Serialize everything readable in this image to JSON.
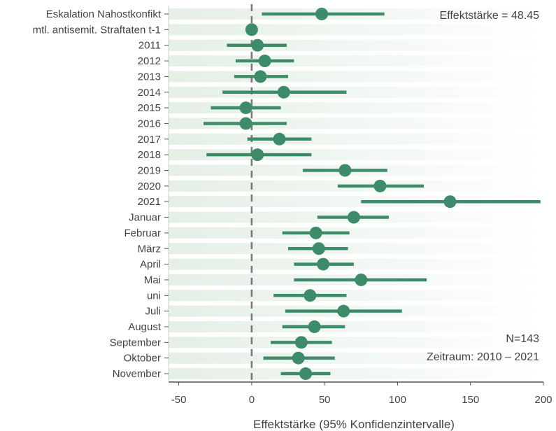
{
  "chart_data": {
    "type": "scatter",
    "subtype": "forest-plot",
    "xlabel": "Effektstärke (95% Konfidenzintervalle)",
    "ylabel": "",
    "xlim": [
      -57,
      200
    ],
    "xticks": [
      -50,
      0,
      50,
      100,
      150,
      200
    ],
    "reference_line": {
      "x": 0,
      "style": "dashed"
    },
    "grid": false,
    "row_bands": true,
    "annotations": {
      "effect_size": "Effektstärke = 48.45",
      "n": "N=143",
      "period": "Zeitraum: 2010 – 2021"
    },
    "colors": {
      "point": "#3d8b6b",
      "reference_line": "#777777",
      "band": "#e8f1ea",
      "axis": "#555555"
    },
    "categories": [
      "Eskalation Nahostkonfikt",
      "mtl. antisemit. Straftaten t-1",
      "2011",
      "2012",
      "2013",
      "2014",
      "2015",
      "2016",
      "2017",
      "2018",
      "2019",
      "2020",
      "2021",
      "Januar",
      "Februar",
      "März",
      "April",
      "Mai",
      "uni",
      "Juli",
      "August",
      "September",
      "Oktober",
      "November"
    ],
    "estimates": [
      48,
      0,
      4,
      9,
      6,
      22,
      -4,
      -4,
      19,
      4,
      64,
      88,
      136,
      70,
      44,
      46,
      49,
      75,
      40,
      63,
      43,
      34,
      32,
      37
    ],
    "ci_low": [
      7,
      -1,
      -17,
      -11,
      -12,
      -20,
      -28,
      -33,
      -3,
      -31,
      35,
      59,
      75,
      45,
      21,
      25,
      29,
      29,
      15,
      23,
      21,
      13,
      8,
      20
    ],
    "ci_high": [
      91,
      1,
      24,
      29,
      25,
      65,
      20,
      24,
      41,
      41,
      93,
      118,
      198,
      94,
      67,
      66,
      70,
      120,
      65,
      103,
      64,
      55,
      57,
      54
    ]
  }
}
